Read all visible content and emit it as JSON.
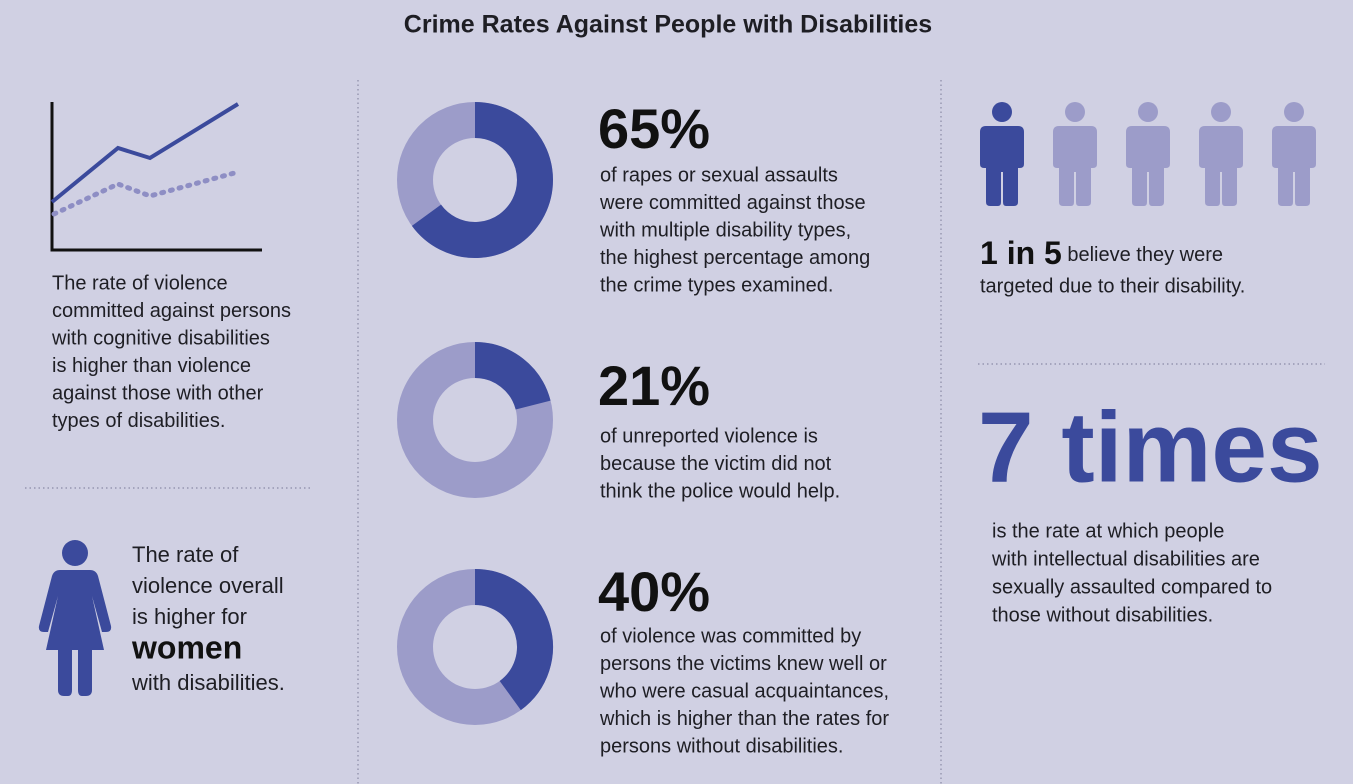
{
  "title": "Crime Rates Against People with Disabilities",
  "cognitive": {
    "lines": [
      "The rate of violence",
      "committed against persons",
      "with cognitive disabilities",
      "is higher than violence",
      "against those with other",
      "types of disabilities."
    ]
  },
  "women": {
    "lines_before": [
      "The rate of",
      "violence overall",
      "is higher for"
    ],
    "emphasis": "women",
    "line_after": "with disabilities."
  },
  "stats": [
    {
      "value": 65,
      "value_label": "65%",
      "lines": [
        "of rapes or sexual assaults",
        "were committed against those",
        "with multiple disability types,",
        "the highest percentage among",
        "the crime types examined."
      ]
    },
    {
      "value": 21,
      "value_label": "21%",
      "lines": [
        "of unreported violence is",
        "because the victim did not",
        "think the police would help."
      ]
    },
    {
      "value": 40,
      "value_label": "40%",
      "lines": [
        "of violence was committed by",
        "persons the victims knew well or",
        "who were casual acquaintances,",
        "which is higher than the rates for",
        "persons without disabilities."
      ]
    }
  ],
  "targeted": {
    "emphasis": "1 in 5",
    "line1": " believe they were",
    "line2": "targeted due to their disability."
  },
  "times": {
    "headline": "7 times",
    "lines": [
      "is the rate at which people",
      "with intellectual disabilities are",
      "sexually assaulted compared to",
      "those without disabilities."
    ]
  }
}
